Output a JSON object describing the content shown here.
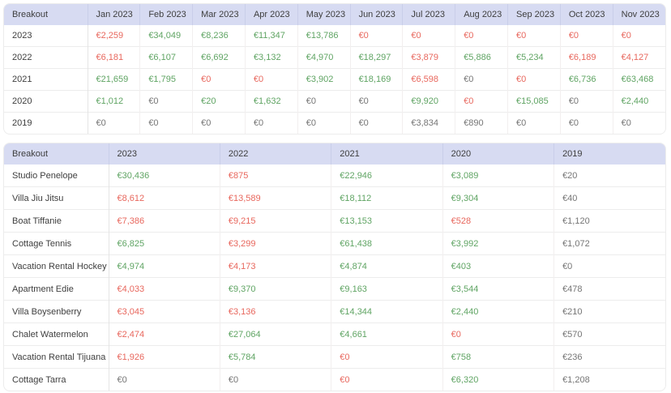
{
  "colors": {
    "positive": "#5fa463",
    "negative": "#e8675d",
    "neutral": "#757575",
    "header_background": "#d7dbf2"
  },
  "monthly_table": {
    "first_header": "Breakout",
    "columns": [
      "Jan 2023",
      "Feb 2023",
      "Mar 2023",
      "Apr 2023",
      "May 2023",
      "Jun 2023",
      "Jul 2023",
      "Aug 2023",
      "Sep 2023",
      "Oct 2023",
      "Nov 2023"
    ],
    "rows": [
      {
        "label": "2023",
        "cells": [
          [
            "€2,259",
            "red"
          ],
          [
            "€34,049",
            "green"
          ],
          [
            "€8,236",
            "green"
          ],
          [
            "€11,347",
            "green"
          ],
          [
            "€13,786",
            "green"
          ],
          [
            "€0",
            "red"
          ],
          [
            "€0",
            "red"
          ],
          [
            "€0",
            "red"
          ],
          [
            "€0",
            "red"
          ],
          [
            "€0",
            "red"
          ],
          [
            "€0",
            "red"
          ]
        ]
      },
      {
        "label": "2022",
        "cells": [
          [
            "€6,181",
            "red"
          ],
          [
            "€6,107",
            "green"
          ],
          [
            "€6,692",
            "green"
          ],
          [
            "€3,132",
            "green"
          ],
          [
            "€4,970",
            "green"
          ],
          [
            "€18,297",
            "green"
          ],
          [
            "€3,879",
            "red"
          ],
          [
            "€5,886",
            "green"
          ],
          [
            "€5,234",
            "green"
          ],
          [
            "€6,189",
            "red"
          ],
          [
            "€4,127",
            "red"
          ]
        ]
      },
      {
        "label": "2021",
        "cells": [
          [
            "€21,659",
            "green"
          ],
          [
            "€1,795",
            "green"
          ],
          [
            "€0",
            "red"
          ],
          [
            "€0",
            "red"
          ],
          [
            "€3,902",
            "green"
          ],
          [
            "€18,169",
            "green"
          ],
          [
            "€6,598",
            "red"
          ],
          [
            "€0",
            "gray"
          ],
          [
            "€0",
            "red"
          ],
          [
            "€6,736",
            "green"
          ],
          [
            "€63,468",
            "green"
          ]
        ]
      },
      {
        "label": "2020",
        "cells": [
          [
            "€1,012",
            "green"
          ],
          [
            "€0",
            "gray"
          ],
          [
            "€20",
            "green"
          ],
          [
            "€1,632",
            "green"
          ],
          [
            "€0",
            "gray"
          ],
          [
            "€0",
            "gray"
          ],
          [
            "€9,920",
            "green"
          ],
          [
            "€0",
            "red"
          ],
          [
            "€15,085",
            "green"
          ],
          [
            "€0",
            "gray"
          ],
          [
            "€2,440",
            "green"
          ]
        ]
      },
      {
        "label": "2019",
        "cells": [
          [
            "€0",
            "gray"
          ],
          [
            "€0",
            "gray"
          ],
          [
            "€0",
            "gray"
          ],
          [
            "€0",
            "gray"
          ],
          [
            "€0",
            "gray"
          ],
          [
            "€0",
            "gray"
          ],
          [
            "€3,834",
            "gray"
          ],
          [
            "€890",
            "gray"
          ],
          [
            "€0",
            "gray"
          ],
          [
            "€0",
            "gray"
          ],
          [
            "€0",
            "gray"
          ]
        ]
      }
    ]
  },
  "yearly_table": {
    "first_header": "Breakout",
    "columns": [
      "2023",
      "2022",
      "2021",
      "2020",
      "2019"
    ],
    "rows": [
      {
        "label": "Studio Penelope",
        "cells": [
          [
            "€30,436",
            "green"
          ],
          [
            "€875",
            "red"
          ],
          [
            "€22,946",
            "green"
          ],
          [
            "€3,089",
            "green"
          ],
          [
            "€20",
            "gray"
          ]
        ]
      },
      {
        "label": "Villa Jiu Jitsu",
        "cells": [
          [
            "€8,612",
            "red"
          ],
          [
            "€13,589",
            "red"
          ],
          [
            "€18,112",
            "green"
          ],
          [
            "€9,304",
            "green"
          ],
          [
            "€40",
            "gray"
          ]
        ]
      },
      {
        "label": "Boat Tiffanie",
        "cells": [
          [
            "€7,386",
            "red"
          ],
          [
            "€9,215",
            "red"
          ],
          [
            "€13,153",
            "green"
          ],
          [
            "€528",
            "red"
          ],
          [
            "€1,120",
            "gray"
          ]
        ]
      },
      {
        "label": "Cottage Tennis",
        "cells": [
          [
            "€6,825",
            "green"
          ],
          [
            "€3,299",
            "red"
          ],
          [
            "€61,438",
            "green"
          ],
          [
            "€3,992",
            "green"
          ],
          [
            "€1,072",
            "gray"
          ]
        ]
      },
      {
        "label": "Vacation Rental Hockey",
        "cells": [
          [
            "€4,974",
            "green"
          ],
          [
            "€4,173",
            "red"
          ],
          [
            "€4,874",
            "green"
          ],
          [
            "€403",
            "green"
          ],
          [
            "€0",
            "gray"
          ]
        ]
      },
      {
        "label": "Apartment Edie",
        "cells": [
          [
            "€4,033",
            "red"
          ],
          [
            "€9,370",
            "green"
          ],
          [
            "€9,163",
            "green"
          ],
          [
            "€3,544",
            "green"
          ],
          [
            "€478",
            "gray"
          ]
        ]
      },
      {
        "label": "Villa Boysenberry",
        "cells": [
          [
            "€3,045",
            "red"
          ],
          [
            "€3,136",
            "red"
          ],
          [
            "€14,344",
            "green"
          ],
          [
            "€2,440",
            "green"
          ],
          [
            "€210",
            "gray"
          ]
        ]
      },
      {
        "label": "Chalet Watermelon",
        "cells": [
          [
            "€2,474",
            "red"
          ],
          [
            "€27,064",
            "green"
          ],
          [
            "€4,661",
            "green"
          ],
          [
            "€0",
            "red"
          ],
          [
            "€570",
            "gray"
          ]
        ]
      },
      {
        "label": "Vacation Rental Tijuana",
        "cells": [
          [
            "€1,926",
            "red"
          ],
          [
            "€5,784",
            "green"
          ],
          [
            "€0",
            "red"
          ],
          [
            "€758",
            "green"
          ],
          [
            "€236",
            "gray"
          ]
        ]
      },
      {
        "label": "Cottage Tarra",
        "cells": [
          [
            "€0",
            "gray"
          ],
          [
            "€0",
            "gray"
          ],
          [
            "€0",
            "red"
          ],
          [
            "€6,320",
            "green"
          ],
          [
            "€1,208",
            "gray"
          ]
        ]
      }
    ]
  }
}
